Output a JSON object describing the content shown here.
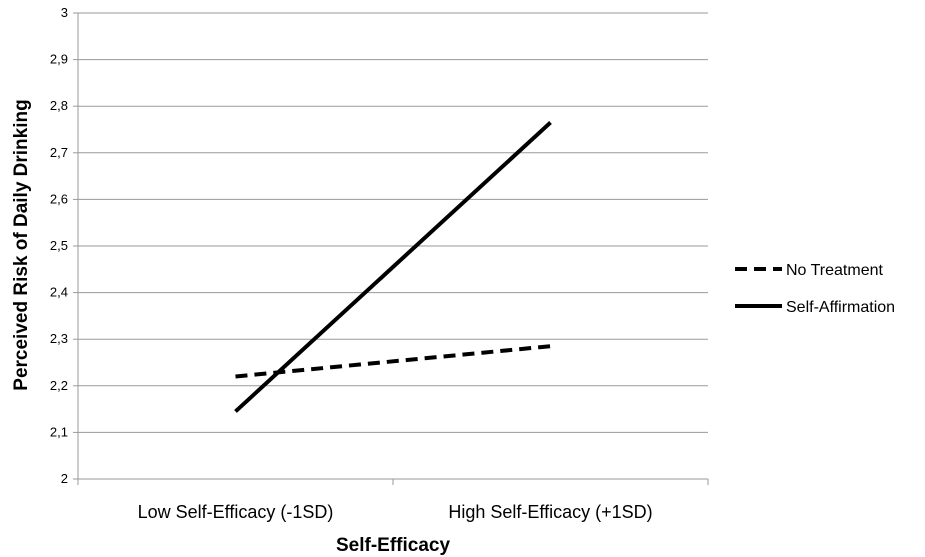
{
  "chart_data": {
    "type": "line",
    "title": "",
    "xlabel": "Self-Efficacy",
    "ylabel": "Perceived Risk of Daily Drinking",
    "categories": [
      "Low Self-Efficacy (-1SD)",
      "High Self-Efficacy (+1SD)"
    ],
    "series": [
      {
        "name": "No Treatment",
        "values": [
          2.22,
          2.285
        ],
        "style": "dashed",
        "color": "#000000"
      },
      {
        "name": "Self-Affirmation",
        "values": [
          2.145,
          2.765
        ],
        "style": "solid",
        "color": "#000000"
      }
    ],
    "ylim": [
      2,
      3
    ],
    "yticks": [
      "2",
      "2,1",
      "2,2",
      "2,3",
      "2,4",
      "2,5",
      "2,6",
      "2,7",
      "2,8",
      "2,9",
      "3"
    ],
    "grid": true,
    "legend_position": "right"
  }
}
